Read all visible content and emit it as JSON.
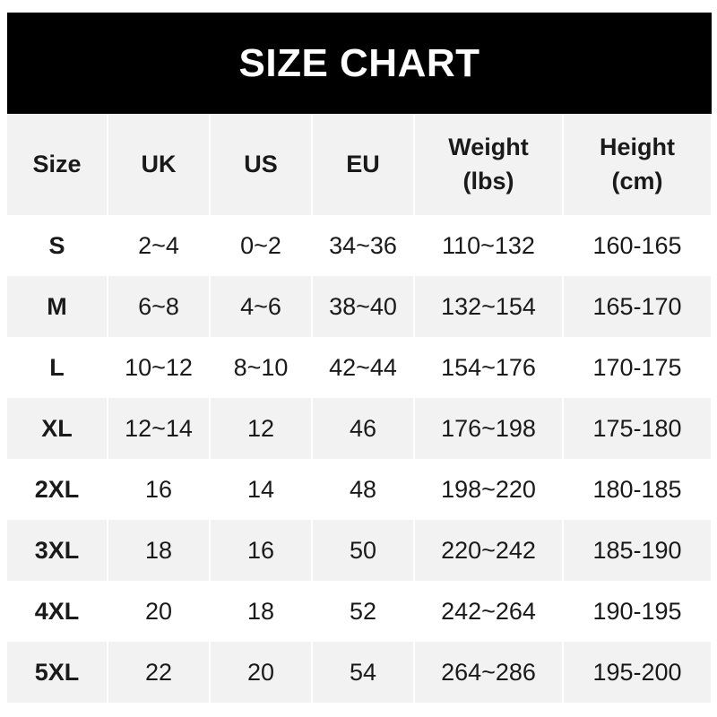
{
  "title": "SIZE CHART",
  "headers": [
    "Size",
    "UK",
    "US",
    "EU",
    "Weight\n(lbs)",
    "Height\n(cm)"
  ],
  "header_lines": [
    [
      "Size"
    ],
    [
      "UK"
    ],
    [
      "US"
    ],
    [
      "EU"
    ],
    [
      "Weight",
      "(lbs)"
    ],
    [
      "Height",
      "(cm)"
    ]
  ],
  "rows": [
    [
      "S",
      "2~4",
      "0~2",
      "34~36",
      "110~132",
      "160-165"
    ],
    [
      "M",
      "6~8",
      "4~6",
      "38~40",
      "132~154",
      "165-170"
    ],
    [
      "L",
      "10~12",
      "8~10",
      "42~44",
      "154~176",
      "170-175"
    ],
    [
      "XL",
      "12~14",
      "12",
      "46",
      "176~198",
      "175-180"
    ],
    [
      "2XL",
      "16",
      "14",
      "48",
      "198~220",
      "180-185"
    ],
    [
      "3XL",
      "18",
      "16",
      "50",
      "220~242",
      "185-190"
    ],
    [
      "4XL",
      "20",
      "18",
      "52",
      "242~264",
      "190-195"
    ],
    [
      "5XL",
      "22",
      "20",
      "54",
      "264~286",
      "195-200"
    ]
  ],
  "colors": {
    "title_bg": "#000000",
    "title_text": "#ffffff",
    "stripe": "#f2f2f2"
  }
}
